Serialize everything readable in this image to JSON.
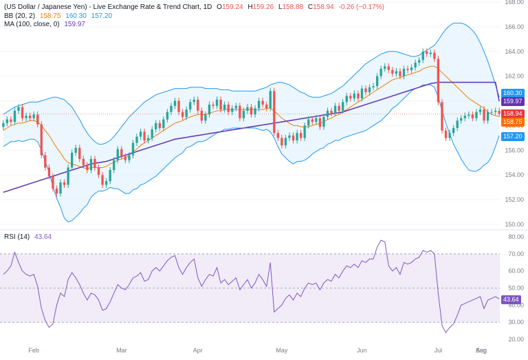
{
  "header": {
    "symbol_title": "(US Dollar / Japanese Yen) - Live Exchange Rate & Trend Chart, 1D",
    "o_label": "O",
    "o": "159.24",
    "h_label": "H",
    "h": "159.26",
    "l_label": "L",
    "l": "158.88",
    "c_label": "C",
    "c": "158.94",
    "change": "-0.26 (−0.17%)",
    "bb_label": "BB (20, 2)",
    "bb_mid": "158.75",
    "bb_upper": "160.30",
    "bb_lower": "157.20",
    "ma_label": "MA (100, close, 0)",
    "ma": "159.97",
    "rsi_label": "RSI (14)",
    "rsi": "43.64"
  },
  "colors": {
    "up": "#26a69a",
    "down": "#ef5350",
    "bb_line": "#2196f3",
    "bb_fill": "#e3f2fd",
    "bb_mid": "#f57c00",
    "ma": "#673ab7",
    "rsi": "#7e57c2",
    "rsi_band": "#ede7f6",
    "grid": "#f0f3fa",
    "axis_text": "#787b86",
    "price_tag": "#e53935",
    "bb_upper_tag": "#2196f3",
    "ma_tag": "#5e35b1",
    "bb_mid_tag": "#ff6d00",
    "bb_lower_tag": "#2196f3"
  },
  "chart_data": [
    {
      "type": "candlestick",
      "title": "(US Dollar / Japanese Yen) - Live Exchange Rate & Trend Chart, 1D",
      "ylim": [
        150,
        168
      ],
      "y_ticks": [
        "150.00",
        "152.00",
        "154.00",
        "156.00",
        "158.00",
        "160.00",
        "162.00",
        "164.00",
        "166.00",
        "168.00"
      ],
      "x_ticks": [
        "Feb",
        "Mar",
        "Apr",
        "May",
        "Jun",
        "Jul",
        "Aug",
        "Sep"
      ],
      "series": [
        {
          "name": "USDJPY",
          "close": [
            158.2,
            158.5,
            158.3,
            159.2,
            159.5,
            158.6,
            158.8,
            158.6,
            158.9,
            158.1,
            155.6,
            154.6,
            153.9,
            152.9,
            152.5,
            153.4,
            153.2,
            154.6,
            155.8,
            156.2,
            155.3,
            154.8,
            154.4,
            155.3,
            154.6,
            154.0,
            153.2,
            153.5,
            154.4,
            155.2,
            156.1,
            155.5,
            155.2,
            155.6,
            156.6,
            157.1,
            157.5,
            156.8,
            157.0,
            157.7,
            158.2,
            157.8,
            158.5,
            159.1,
            159.6,
            160.0,
            159.1,
            158.7,
            159.3,
            159.9,
            160.1,
            159.2,
            158.4,
            158.9,
            159.7,
            159.6,
            160.1,
            159.3,
            159.7,
            159.1,
            159.4,
            159.6,
            158.6,
            159.2,
            159.5,
            158.9,
            159.4,
            160.0,
            159.7,
            159.4,
            160.8,
            157.4,
            157.0,
            156.4,
            157.0,
            157.2,
            156.8,
            157.4,
            157.0,
            158.0,
            158.5,
            158.3,
            158.6,
            157.9,
            158.7,
            159.2,
            159.0,
            159.6,
            159.2,
            159.9,
            160.4,
            160.2,
            160.6,
            160.2,
            161.0,
            160.7,
            161.1,
            161.2,
            162.0,
            162.6,
            162.8,
            162.5,
            162.2,
            162.4,
            162.0,
            162.6,
            162.5,
            162.7,
            163.1,
            163.3,
            164.0,
            163.8,
            163.9,
            163.4,
            159.9,
            157.6,
            157.0,
            157.4,
            157.8,
            158.4,
            158.6,
            158.8,
            158.9,
            158.6,
            159.1,
            159.3,
            158.4,
            159.1,
            159.1,
            159.2,
            158.94
          ]
        },
        {
          "name": "BB (20, 2) mid",
          "values": [
            157.6,
            157.8,
            158.0,
            158.1,
            158.2,
            158.2,
            158.3,
            158.4,
            158.4,
            158.3,
            158.0,
            157.6,
            157.2,
            156.7,
            156.2,
            155.8,
            155.3,
            155.0,
            154.9,
            154.8,
            154.7,
            154.6,
            154.5,
            154.6,
            154.6,
            154.6,
            154.6,
            154.7,
            154.9,
            155.0,
            155.2,
            155.3,
            155.4,
            155.6,
            155.9,
            156.1,
            156.4,
            156.6,
            156.8,
            157.0,
            157.2,
            157.4,
            157.6,
            157.8,
            158.0,
            158.2,
            158.3,
            158.4,
            158.6,
            158.7,
            158.8,
            158.9,
            158.9,
            158.9,
            159.0,
            159.1,
            159.2,
            159.2,
            159.3,
            159.3,
            159.3,
            159.3,
            159.3,
            159.3,
            159.3,
            159.3,
            159.3,
            159.3,
            159.3,
            159.4,
            159.4,
            159.2,
            158.9,
            158.6,
            158.4,
            158.2,
            158.0,
            158.0,
            157.9,
            157.9,
            157.9,
            158.0,
            158.1,
            158.2,
            158.3,
            158.5,
            158.6,
            158.8,
            158.9,
            159.1,
            159.3,
            159.5,
            159.7,
            159.9,
            160.1,
            160.3,
            160.5,
            160.7,
            160.9,
            161.1,
            161.3,
            161.5,
            161.7,
            161.8,
            161.9,
            162.0,
            162.1,
            162.2,
            162.3,
            162.4,
            162.6,
            162.7,
            162.8,
            162.8,
            162.6,
            162.3,
            162.0,
            161.7,
            161.4,
            161.1,
            160.8,
            160.5,
            160.2,
            160.0,
            159.8,
            159.6,
            159.4,
            159.1,
            158.9,
            158.8,
            158.75
          ]
        },
        {
          "name": "BB (20, 2) upper",
          "values": [
            158.9,
            159.1,
            159.3,
            159.5,
            159.6,
            159.7,
            159.8,
            159.9,
            159.9,
            159.9,
            160.0,
            160.1,
            160.2,
            160.3,
            160.3,
            160.2,
            160.1,
            159.8,
            159.5,
            159.0,
            158.5,
            157.9,
            157.4,
            157.0,
            156.7,
            156.5,
            156.5,
            156.6,
            156.8,
            157.1,
            157.5,
            157.9,
            158.3,
            158.7,
            159.0,
            159.3,
            159.6,
            159.9,
            160.1,
            160.3,
            160.5,
            160.6,
            160.7,
            160.8,
            160.9,
            161.0,
            161.0,
            161.0,
            161.0,
            161.1,
            161.1,
            161.1,
            161.1,
            161.0,
            161.0,
            161.0,
            161.0,
            160.9,
            160.9,
            160.9,
            160.8,
            160.8,
            160.8,
            160.8,
            160.8,
            160.8,
            160.8,
            160.9,
            161.0,
            161.1,
            161.3,
            161.4,
            161.5,
            161.5,
            161.4,
            161.3,
            161.1,
            160.9,
            160.7,
            160.6,
            160.4,
            160.3,
            160.3,
            160.3,
            160.4,
            160.5,
            160.6,
            160.8,
            161.0,
            161.2,
            161.5,
            161.8,
            162.1,
            162.4,
            162.7,
            163.0,
            163.2,
            163.4,
            163.6,
            163.8,
            163.9,
            164.0,
            164.0,
            164.0,
            163.9,
            163.8,
            163.7,
            163.6,
            163.6,
            163.7,
            163.9,
            164.1,
            164.3,
            164.5,
            164.9,
            165.4,
            165.8,
            166.1,
            166.3,
            166.3,
            166.3,
            166.2,
            166.0,
            165.7,
            165.3,
            164.7,
            164.0,
            163.2,
            162.3,
            161.3,
            160.3
          ]
        },
        {
          "name": "BB (20, 2) lower",
          "values": [
            156.3,
            156.5,
            156.7,
            156.7,
            156.8,
            156.7,
            156.8,
            156.9,
            156.9,
            156.7,
            156.0,
            155.1,
            154.2,
            153.1,
            152.1,
            151.4,
            150.5,
            150.2,
            150.3,
            150.6,
            150.9,
            151.3,
            151.6,
            152.2,
            152.5,
            152.7,
            152.7,
            152.8,
            153.0,
            152.9,
            152.9,
            152.7,
            152.5,
            152.5,
            152.8,
            152.9,
            153.2,
            153.3,
            153.5,
            153.7,
            153.9,
            154.2,
            154.5,
            154.8,
            155.1,
            155.4,
            155.6,
            155.8,
            156.2,
            156.3,
            156.5,
            156.7,
            156.7,
            156.8,
            157.0,
            157.2,
            157.4,
            157.5,
            157.7,
            157.7,
            157.8,
            157.8,
            157.8,
            157.8,
            157.8,
            157.8,
            157.8,
            157.7,
            157.6,
            157.7,
            157.5,
            157.0,
            156.3,
            155.7,
            155.4,
            155.1,
            154.9,
            155.1,
            155.1,
            155.2,
            155.4,
            155.7,
            155.9,
            156.1,
            156.2,
            156.5,
            156.6,
            156.8,
            156.8,
            157.0,
            157.1,
            157.2,
            157.3,
            157.4,
            157.5,
            157.6,
            157.8,
            158.0,
            158.2,
            158.4,
            158.7,
            159.0,
            159.4,
            159.6,
            159.9,
            160.2,
            160.5,
            160.8,
            161.0,
            161.1,
            161.3,
            161.3,
            161.3,
            161.1,
            160.3,
            159.2,
            158.2,
            157.3,
            156.5,
            155.9,
            155.3,
            154.8,
            154.4,
            154.3,
            154.3,
            154.5,
            154.8,
            155.0,
            155.5,
            156.3,
            157.2
          ]
        },
        {
          "name": "MA (100, close, 0)",
          "values": [
            152.6,
            152.7,
            152.8,
            152.9,
            153.0,
            153.1,
            153.2,
            153.3,
            153.4,
            153.5,
            153.6,
            153.7,
            153.8,
            153.9,
            154.0,
            154.1,
            154.2,
            154.3,
            154.4,
            154.5,
            154.6,
            154.7,
            154.8,
            154.9,
            154.95,
            155.0,
            155.05,
            155.1,
            155.2,
            155.3,
            155.4,
            155.5,
            155.6,
            155.7,
            155.8,
            155.9,
            156.0,
            156.1,
            156.2,
            156.3,
            156.4,
            156.5,
            156.6,
            156.7,
            156.8,
            156.9,
            156.95,
            157.0,
            157.05,
            157.1,
            157.15,
            157.2,
            157.25,
            157.3,
            157.35,
            157.4,
            157.45,
            157.5,
            157.55,
            157.6,
            157.65,
            157.7,
            157.75,
            157.8,
            157.85,
            157.9,
            157.95,
            158.0,
            158.05,
            158.1,
            158.15,
            158.2,
            158.25,
            158.3,
            158.35,
            158.4,
            158.45,
            158.5,
            158.55,
            158.6,
            158.65,
            158.7,
            158.75,
            158.8,
            158.85,
            158.9,
            158.95,
            159.0,
            159.05,
            159.1,
            159.2,
            159.3,
            159.4,
            159.5,
            159.6,
            159.7,
            159.8,
            159.9,
            160.0,
            160.1,
            160.2,
            160.3,
            160.4,
            160.5,
            160.6,
            160.7,
            160.8,
            160.9,
            161.0,
            161.1,
            161.2,
            161.3,
            161.4,
            161.45,
            161.5,
            161.5,
            161.5,
            161.5,
            161.5,
            161.5,
            161.5,
            161.5,
            161.5,
            161.5,
            161.5,
            161.5,
            161.5,
            161.5,
            161.5,
            161.5,
            159.97
          ]
        }
      ]
    },
    {
      "type": "line",
      "title": "RSI (14)",
      "ylim": [
        20,
        80
      ],
      "y_ticks": [
        "20.00",
        "30.00",
        "40.00",
        "50.00",
        "60.00",
        "70.00",
        "80.00"
      ],
      "band": [
        30,
        70
      ],
      "series": [
        {
          "name": "RSI (14)",
          "values": [
            58,
            60,
            63,
            71,
            65,
            60,
            58,
            57,
            58,
            51,
            38,
            31,
            27,
            29,
            40,
            47,
            45,
            55,
            59,
            56,
            52,
            47,
            43,
            47,
            46,
            43,
            37,
            38,
            42,
            47,
            52,
            50,
            49,
            52,
            56,
            57,
            59,
            54,
            55,
            60,
            62,
            60,
            63,
            66,
            68,
            69,
            62,
            58,
            62,
            65,
            67,
            56,
            51,
            55,
            58,
            57,
            62,
            53,
            55,
            52,
            54,
            56,
            49,
            52,
            55,
            50,
            53,
            58,
            55,
            51,
            65,
            36,
            38,
            40,
            44,
            46,
            43,
            47,
            45,
            50,
            53,
            52,
            53,
            49,
            53,
            55,
            54,
            58,
            56,
            60,
            63,
            62,
            64,
            62,
            66,
            65,
            67,
            67,
            74,
            78,
            77,
            63,
            60,
            62,
            58,
            65,
            64,
            65,
            67,
            68,
            72,
            71,
            72,
            70,
            47,
            28,
            24,
            27,
            29,
            34,
            40,
            41,
            42,
            43,
            44,
            45,
            38,
            43,
            44,
            45,
            43.64
          ]
        }
      ]
    }
  ]
}
